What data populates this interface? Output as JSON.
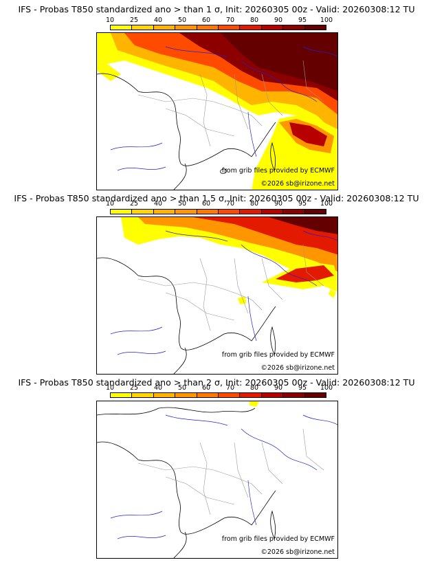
{
  "colors": {
    "bins": [
      "#ffff00",
      "#ffd600",
      "#ffb400",
      "#ff9600",
      "#ff7800",
      "#ff4b00",
      "#e31a00",
      "#b80000",
      "#8c0000",
      "#640000"
    ],
    "coast": "#000000",
    "rivers": "#2020d0",
    "borders": "#999999"
  },
  "legend": {
    "ticks": [
      "10",
      "25",
      "40",
      "50",
      "60",
      "70",
      "80",
      "90",
      "95",
      "100"
    ]
  },
  "credits": {
    "source": "from grib files provided by ECMWF",
    "copyright": "©2026 sb@irizone.net"
  },
  "panels": [
    {
      "title": "IFS - Probas T850  standardized ano > than 1 σ, Init: 20260305 00z - Valid: 20260308:12 TU",
      "sigma": "1"
    },
    {
      "title": "IFS - Probas T850  standardized ano > than 1.5 σ, Init: 20260305 00z - Valid: 20260308:12 TU",
      "sigma": "1.5"
    },
    {
      "title": "IFS - Probas T850  standardized ano > than 2 σ, Init: 20260305 00z - Valid: 20260308:12 TU",
      "sigma": "2"
    }
  ]
}
